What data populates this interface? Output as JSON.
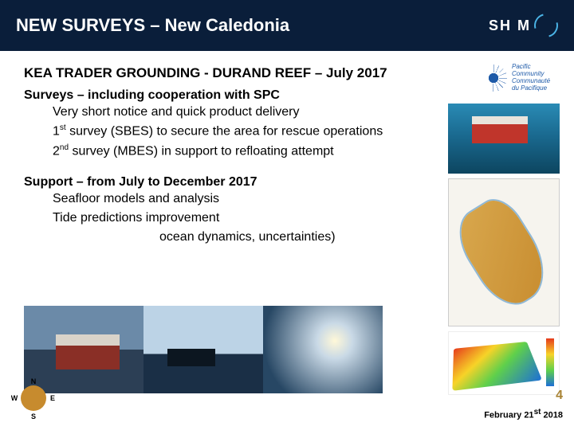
{
  "header": {
    "title": "NEW SURVEYS – New Caledonia",
    "logo_text": "SH   M",
    "logo_accent_color": "#4bb4e6",
    "bg_color": "#0a1e3a"
  },
  "spc_logo": {
    "line1": "Pacific",
    "line2": "Community",
    "line3": "Communauté",
    "line4": "du Pacifique",
    "color": "#1e5aa8"
  },
  "subtitle": "KEA TRADER GROUNDING - DURAND REEF – July 2017",
  "sections": [
    {
      "head": "Surveys – including cooperation with SPC",
      "items": [
        {
          "text": "Very short notice and quick product delivery"
        },
        {
          "pre": "1",
          "sup": "st",
          "post": " survey (SBES) to secure the area for rescue operations"
        },
        {
          "pre": "2",
          "sup": "nd",
          "post": " survey (MBES) in support to refloating attempt"
        }
      ]
    },
    {
      "head": "Support – from July to December 2017",
      "items": [
        {
          "text": "Seafloor models and analysis"
        },
        {
          "text": "Tide predictions improvement"
        },
        {
          "text": "ocean dynamics, uncertainties)",
          "indent": true
        }
      ]
    }
  ],
  "footer": {
    "page_number": "4",
    "date_pre": "February 21",
    "date_sup": "st",
    "date_post": " 2018"
  },
  "panels": {
    "ship": {
      "bg_top": "#2a8bb5",
      "bg_bot": "#0d4560",
      "hull": "#c0352b"
    },
    "map": {
      "bg": "#f6f4ee",
      "island": "#c78b2e",
      "water": "#8fb8d6"
    },
    "bathy": {
      "gradient": [
        "#e63b1c",
        "#f7d328",
        "#5fd04b",
        "#1d6fd6"
      ]
    }
  },
  "compass": {
    "letters": [
      "N",
      "E",
      "S",
      "W"
    ],
    "color": "#c78b2e"
  }
}
